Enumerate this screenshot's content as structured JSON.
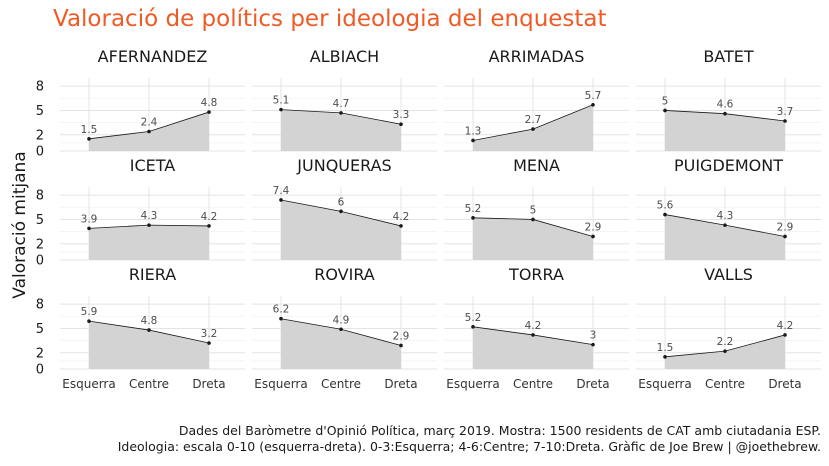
{
  "title": "Valoració de polítics per ideologia del enquestat",
  "caption_line1": "Dades del Baròmetre d'Opinió Política, març 2019. Mostra: 1500 residents de CAT amb ciutadania ESP.",
  "caption_line2": "Ideologia: escala 0-10 (esquerra-dreta). 0-3:Esquerra; 4-6:Centre; 7-10:Dreta. Gràfic de Joe Brew | @joethebrew.",
  "colors": {
    "title": "#f15a24",
    "area": "#d3d3d3",
    "line": "#1a1a1a"
  },
  "chart_data": {
    "type": "area",
    "facet_layout": {
      "rows": 3,
      "cols": 4
    },
    "ylabel": "Valoració mitjana",
    "xlabel": "",
    "categories": [
      "Esquerra",
      "Centre",
      "Dreta"
    ],
    "y_ticks": [
      0,
      2,
      5,
      8
    ],
    "ylim": [
      0,
      9
    ],
    "grid": true,
    "facets": [
      {
        "name": "AFERNANDEZ",
        "values": [
          1.5,
          2.4,
          4.8
        ]
      },
      {
        "name": "ALBIACH",
        "values": [
          5.1,
          4.7,
          3.3
        ]
      },
      {
        "name": "ARRIMADAS",
        "values": [
          1.3,
          2.7,
          5.7
        ]
      },
      {
        "name": "BATET",
        "values": [
          5,
          4.6,
          3.7
        ]
      },
      {
        "name": "ICETA",
        "values": [
          3.9,
          4.3,
          4.2
        ]
      },
      {
        "name": "JUNQUERAS",
        "values": [
          7.4,
          6,
          4.2
        ]
      },
      {
        "name": "MENA",
        "values": [
          5.2,
          5,
          2.9
        ]
      },
      {
        "name": "PUIGDEMONT",
        "values": [
          5.6,
          4.3,
          2.9
        ]
      },
      {
        "name": "RIERA",
        "values": [
          5.9,
          4.8,
          3.2
        ]
      },
      {
        "name": "ROVIRA",
        "values": [
          6.2,
          4.9,
          2.9
        ]
      },
      {
        "name": "TORRA",
        "values": [
          5.2,
          4.2,
          3
        ]
      },
      {
        "name": "VALLS",
        "values": [
          1.5,
          2.2,
          4.2
        ]
      }
    ]
  }
}
